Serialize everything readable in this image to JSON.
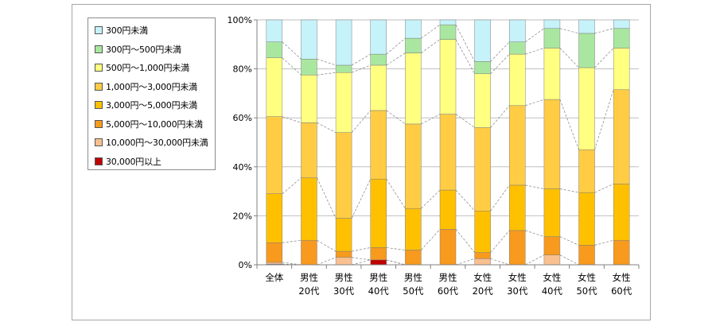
{
  "chart_data": {
    "type": "bar",
    "stacked": true,
    "normalized": true,
    "categories": [
      [
        "全体",
        ""
      ],
      [
        "男性",
        "20代"
      ],
      [
        "男性",
        "30代"
      ],
      [
        "男性",
        "40代"
      ],
      [
        "男性",
        "50代"
      ],
      [
        "男性",
        "60代"
      ],
      [
        "女性",
        "20代"
      ],
      [
        "女性",
        "30代"
      ],
      [
        "女性",
        "40代"
      ],
      [
        "女性",
        "50代"
      ],
      [
        "女性",
        "60代"
      ]
    ],
    "yticks": [
      "0%",
      "20%",
      "40%",
      "60%",
      "80%",
      "100%"
    ],
    "ylim": [
      0,
      100
    ],
    "grid": true,
    "series_lines": "dashed connectors between cumulative boundaries",
    "legend_position": "left",
    "series": [
      {
        "name": "30,000円以上",
        "color": "#c00000",
        "values": [
          0.3,
          0,
          0,
          2,
          0,
          0,
          0,
          0,
          0,
          0,
          0
        ]
      },
      {
        "name": "10,000円～30,000円未満",
        "color": "#fac090",
        "values": [
          0.7,
          0,
          3,
          0,
          0,
          0,
          2.5,
          0,
          4,
          0,
          0
        ]
      },
      {
        "name": "5,000円～10,000円未満",
        "color": "#f79a1d",
        "values": [
          8,
          10,
          2.5,
          5,
          6,
          14.5,
          2.5,
          14,
          7.5,
          8,
          10
        ]
      },
      {
        "name": "3,000円～5,000円未満",
        "color": "#ffc000",
        "values": [
          20,
          25.5,
          13.5,
          28,
          17,
          16,
          17,
          18.5,
          19.5,
          21.5,
          23
        ]
      },
      {
        "name": "1,000円～3,000円未満",
        "color": "#ffcc44",
        "values": [
          31.5,
          22.5,
          35,
          28,
          34.5,
          31,
          34,
          32.5,
          36.5,
          17.5,
          38.5
        ]
      },
      {
        "name": "500円～1,000円未満",
        "color": "#ffff80",
        "values": [
          24,
          19.5,
          24.5,
          18.5,
          29,
          30.5,
          22,
          21,
          21,
          33.5,
          17
        ]
      },
      {
        "name": "300円～500円未満",
        "color": "#a9e7a0",
        "values": [
          6.5,
          6.5,
          3,
          4.5,
          6,
          6,
          5,
          5,
          8,
          14,
          8
        ]
      },
      {
        "name": "300円未満",
        "color": "#c6f2f9",
        "values": [
          9,
          16,
          18.5,
          14,
          7.5,
          2,
          17,
          9,
          3.5,
          5.5,
          3.5
        ]
      }
    ]
  }
}
